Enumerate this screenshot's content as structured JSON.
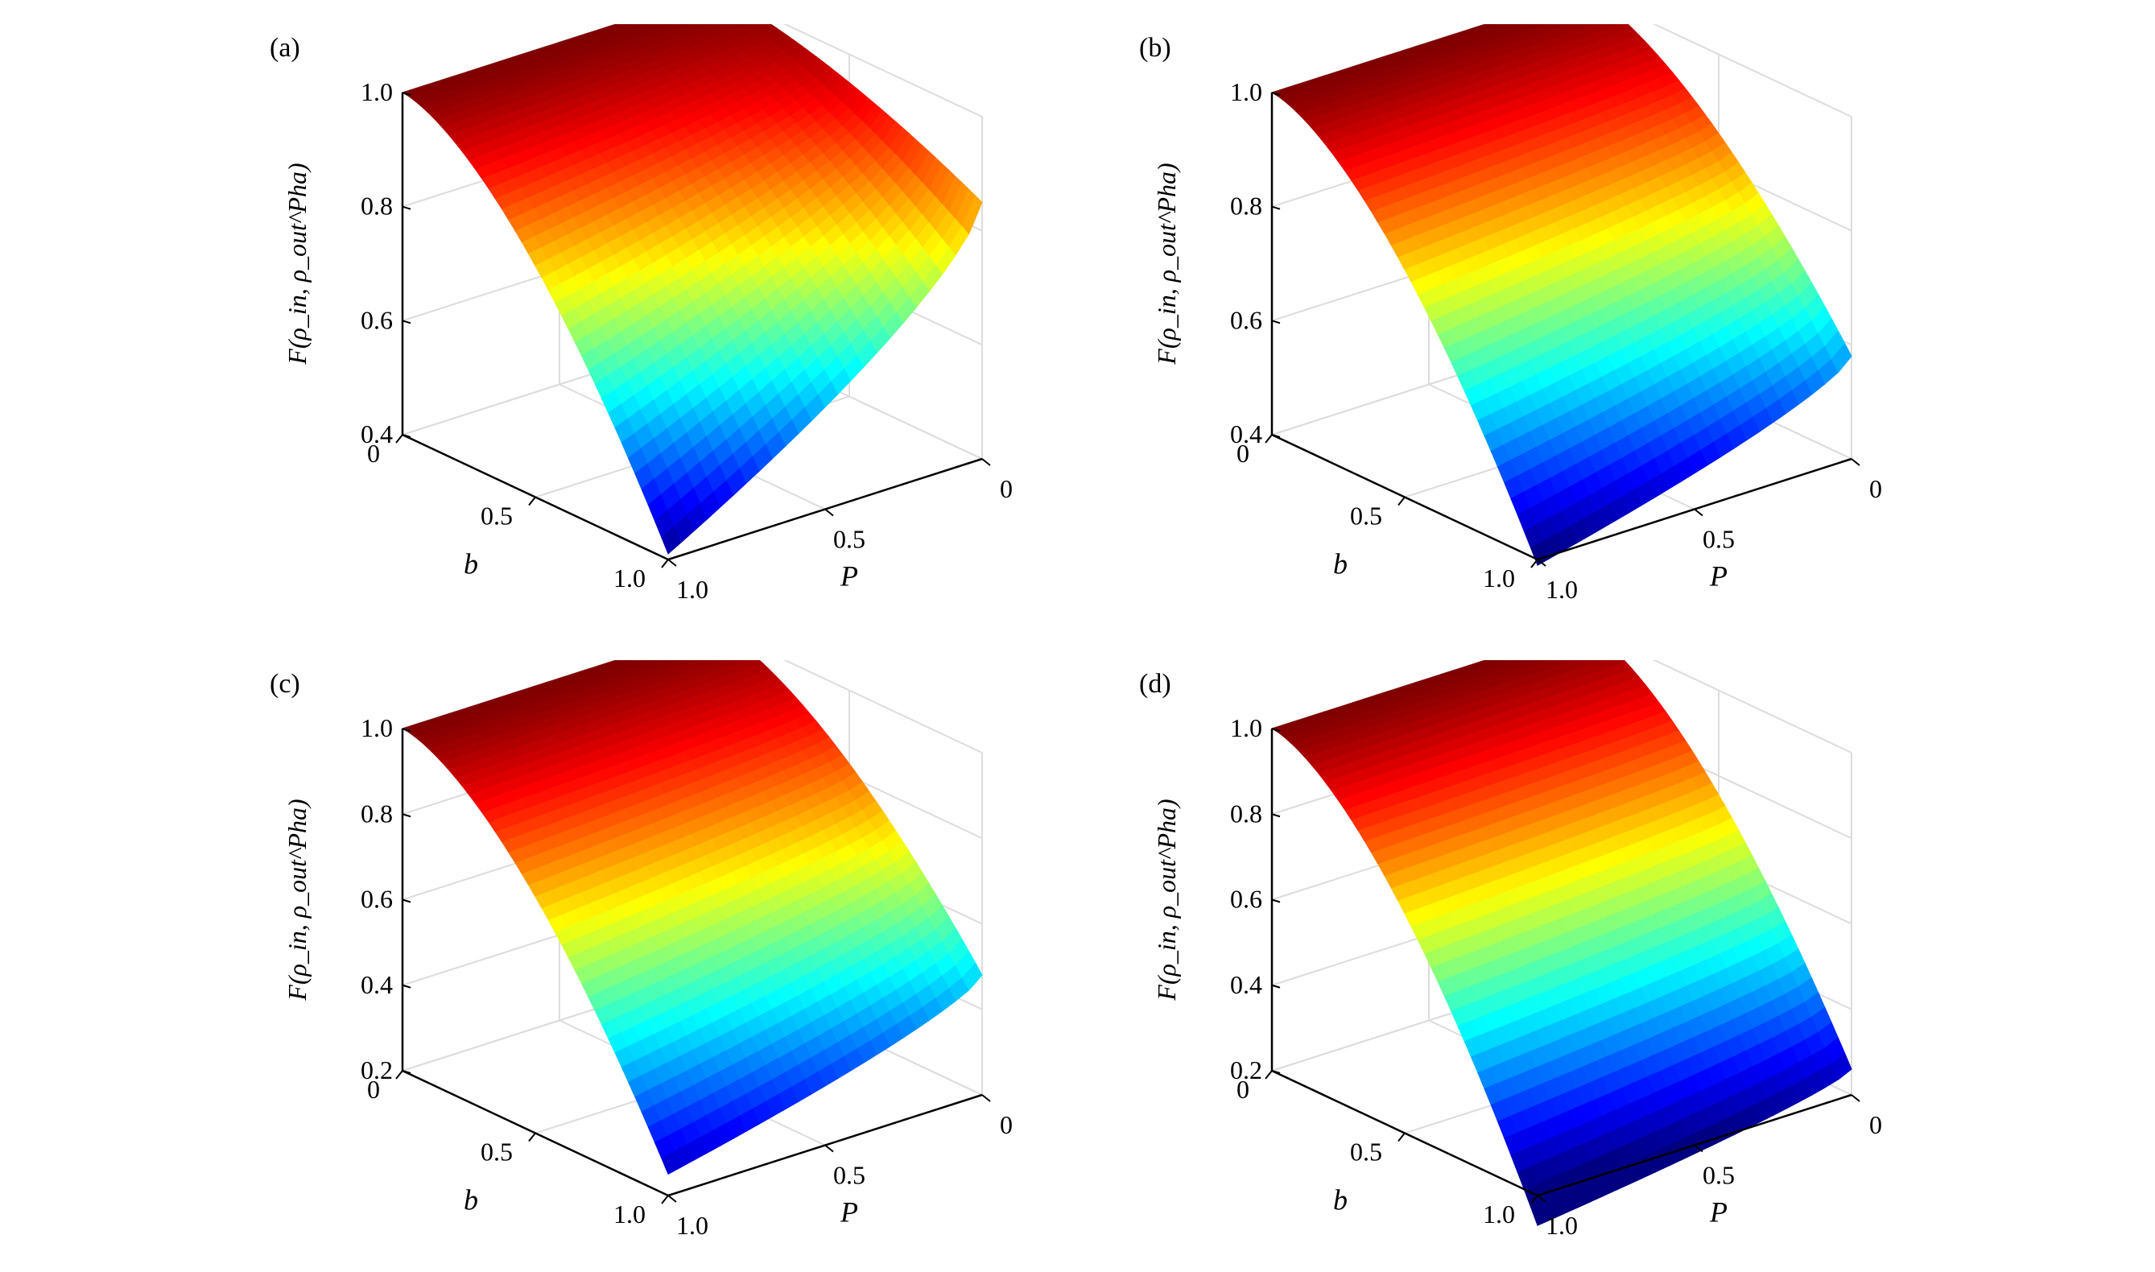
{
  "figure": {
    "panels": [
      {
        "id": "a",
        "label": "(a)",
        "z_ticks": [
          "0.4",
          "0.6",
          "0.8",
          "1.0"
        ],
        "b_ticks": [
          "0",
          "0.5",
          "1.0"
        ],
        "p_ticks": [
          "0",
          "0.5",
          "1.0"
        ],
        "z_label": "F(ρ_in, ρ_out^Pha)",
        "b_label": "b",
        "p_label": "P"
      },
      {
        "id": "b",
        "label": "(b)",
        "z_ticks": [
          "0.4",
          "0.6",
          "0.8",
          "1.0"
        ],
        "b_ticks": [
          "0",
          "0.5",
          "1.0"
        ],
        "p_ticks": [
          "0",
          "0.5",
          "1.0"
        ],
        "z_label": "F(ρ_in, ρ_out^Pha)",
        "b_label": "b",
        "p_label": "P"
      },
      {
        "id": "c",
        "label": "(c)",
        "z_ticks": [
          "0.2",
          "0.4",
          "0.6",
          "0.8",
          "1.0"
        ],
        "b_ticks": [
          "0",
          "0.5",
          "1.0"
        ],
        "p_ticks": [
          "0",
          "0.5",
          "1.0"
        ],
        "z_label": "F(ρ_in, ρ_out^Pha)",
        "b_label": "b",
        "p_label": "P"
      },
      {
        "id": "d",
        "label": "(d)",
        "z_ticks": [
          "0.2",
          "0.4",
          "0.6",
          "0.8",
          "1.0"
        ],
        "b_ticks": [
          "0",
          "0.5",
          "1.0"
        ],
        "p_ticks": [
          "0",
          "0.5",
          "1.0"
        ],
        "z_label": "F(ρ_in, ρ_out^Pha)",
        "b_label": "b",
        "p_label": "P"
      }
    ]
  },
  "chart_data": [
    {
      "type": "surface",
      "panel": "(a)",
      "colormap": "jet",
      "grid": true,
      "xlabel": "P",
      "ylabel": "b",
      "zlabel": "F(ρ_in, ρ_out^Pha)",
      "xlim": [
        0,
        1
      ],
      "ylim": [
        0,
        1
      ],
      "zlim": [
        0.4,
        1.0
      ],
      "surface_corners": [
        {
          "P": 0,
          "b": 0,
          "F": 1.0
        },
        {
          "P": 0,
          "b": 1,
          "F": 0.85
        },
        {
          "P": 1,
          "b": 0,
          "F": 1.0
        },
        {
          "P": 1,
          "b": 1,
          "F": 0.41
        }
      ]
    },
    {
      "type": "surface",
      "panel": "(b)",
      "colormap": "jet",
      "grid": true,
      "xlabel": "P",
      "ylabel": "b",
      "zlabel": "F(ρ_in, ρ_out^Pha)",
      "xlim": [
        0,
        1
      ],
      "ylim": [
        0,
        1
      ],
      "zlim": [
        0.4,
        1.0
      ],
      "surface_corners": [
        {
          "P": 0,
          "b": 0,
          "F": 1.0
        },
        {
          "P": 0,
          "b": 1,
          "F": 0.58
        },
        {
          "P": 1,
          "b": 0,
          "F": 1.0
        },
        {
          "P": 1,
          "b": 1,
          "F": 0.39
        }
      ]
    },
    {
      "type": "surface",
      "panel": "(c)",
      "colormap": "jet",
      "grid": true,
      "xlabel": "P",
      "ylabel": "b",
      "zlabel": "F(ρ_in, ρ_out^Pha)",
      "xlim": [
        0,
        1
      ],
      "ylim": [
        0,
        1
      ],
      "zlim": [
        0.2,
        1.0
      ],
      "surface_corners": [
        {
          "P": 0,
          "b": 0,
          "F": 1.0
        },
        {
          "P": 0,
          "b": 1,
          "F": 0.48
        },
        {
          "P": 1,
          "b": 0,
          "F": 1.0
        },
        {
          "P": 1,
          "b": 1,
          "F": 0.25
        }
      ]
    },
    {
      "type": "surface",
      "panel": "(d)",
      "colormap": "jet",
      "grid": true,
      "xlabel": "P",
      "ylabel": "b",
      "zlabel": "F(ρ_in, ρ_out^Pha)",
      "xlim": [
        0,
        1
      ],
      "ylim": [
        0,
        1
      ],
      "zlim": [
        0.2,
        1.0
      ],
      "surface_corners": [
        {
          "P": 0,
          "b": 0,
          "F": 1.0
        },
        {
          "P": 0,
          "b": 1,
          "F": 0.26
        },
        {
          "P": 1,
          "b": 0,
          "F": 1.0
        },
        {
          "P": 1,
          "b": 1,
          "F": 0.13
        }
      ]
    }
  ]
}
